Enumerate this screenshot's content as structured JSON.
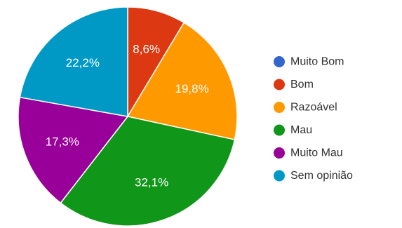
{
  "chart_data": {
    "type": "pie",
    "categories": [
      "Muito Bom",
      "Bom",
      "Razoável",
      "Mau",
      "Muito Mau",
      "Sem opinião"
    ],
    "values": [
      0,
      8.6,
      19.8,
      32.1,
      17.3,
      22.2
    ],
    "value_labels": [
      "",
      "8,6%",
      "19,8%",
      "32,1%",
      "17,3%",
      "22,2%"
    ],
    "colors": [
      "#3366cc",
      "#dc3912",
      "#ff9900",
      "#109618",
      "#990099",
      "#0099c6"
    ],
    "title": "",
    "legend_position": "right",
    "start_angle_deg": 90,
    "direction": "clockwise"
  }
}
